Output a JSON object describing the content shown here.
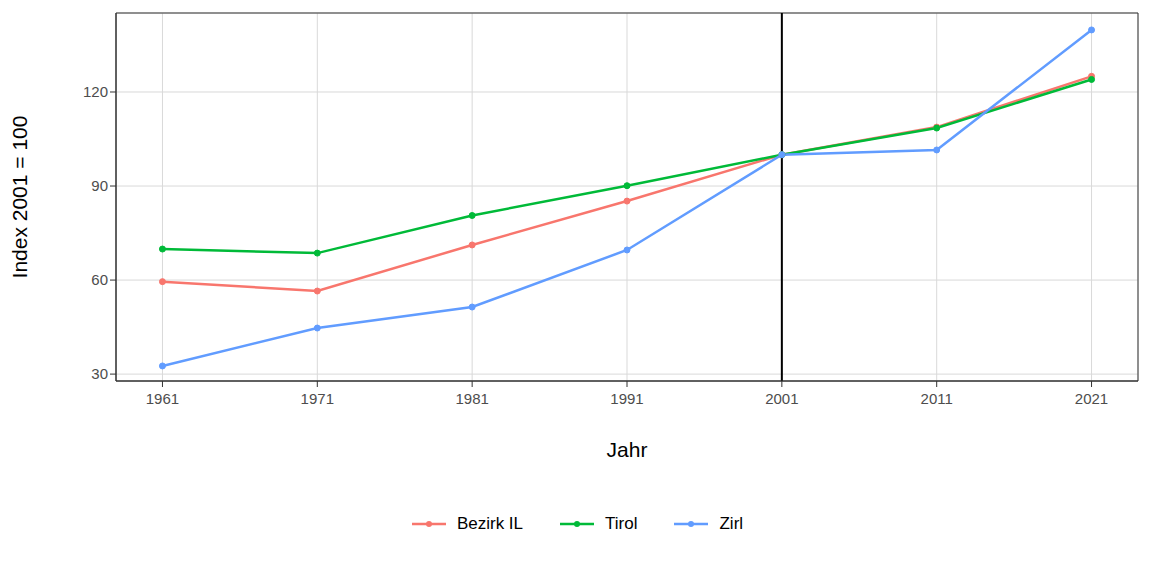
{
  "chart_data": {
    "type": "line",
    "x_label": "Jahr",
    "y_label": "Index 2001 = 100",
    "x": [
      1961,
      1971,
      1981,
      1991,
      2001,
      2011,
      2021
    ],
    "series": [
      {
        "name": "Bezirk IL",
        "color": "#F8766D",
        "marker": "circle",
        "values": [
          59.5,
          56.5,
          71.2,
          85.2,
          100,
          108.8,
          125
        ]
      },
      {
        "name": "Tirol",
        "color": "#00BA38",
        "marker": "circle",
        "values": [
          69.9,
          68.6,
          80.6,
          90.1,
          100,
          108.5,
          124
        ]
      },
      {
        "name": "Zirl",
        "color": "#619CFF",
        "marker": "circle",
        "values": [
          32.6,
          44.7,
          51.4,
          69.6,
          100,
          101.5,
          139.8
        ]
      }
    ],
    "xlim": [
      1958,
      2024
    ],
    "ylim": [
      27.8,
      145.2
    ],
    "xticks": [
      1961,
      1971,
      1981,
      1991,
      2001,
      2011,
      2021
    ],
    "yticks": [
      30,
      60,
      90,
      120
    ],
    "vline": 2001,
    "grid": true,
    "legend": "bottom"
  }
}
